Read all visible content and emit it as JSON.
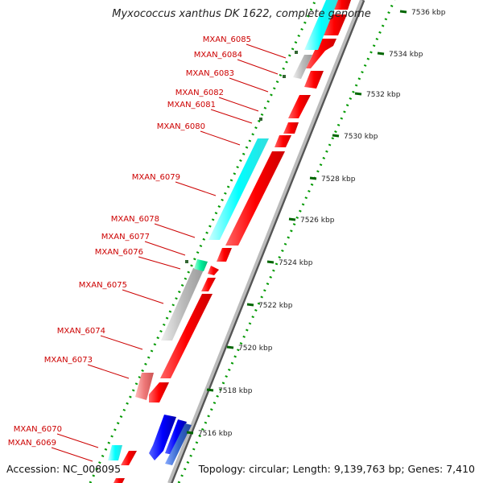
{
  "title": "Myxococcus xanthus DK 1622, complete genome",
  "accession_text": "Accession: NC_008095",
  "summary_text": "Topology: circular; Length: 9,139,763 bp; Genes: 7,410",
  "colors": {
    "forward_cds": "#ff0000",
    "cyan_feature": "#00ffff",
    "gray_feature": "#bbbbbb",
    "blue_feature": "#0000ff",
    "green_dots": "#009900",
    "label_red": "#cc0000"
  },
  "scale_labels": [
    "7536 kbp",
    "7534 kbp",
    "7532 kbp",
    "7530 kbp",
    "7528 kbp",
    "7526 kbp",
    "7524 kbp",
    "7522 kbp",
    "7520 kbp",
    "7518 kbp",
    "7516 kbp"
  ],
  "gene_labels": [
    "MXAN_6085",
    "MXAN_6084",
    "MXAN_6083",
    "MXAN_6082",
    "MXAN_6081",
    "MXAN_6080",
    "MXAN_6079",
    "MXAN_6078",
    "MXAN_6077",
    "MXAN_6076",
    "MXAN_6075",
    "MXAN_6074",
    "MXAN_6073",
    "MXAN_6070",
    "MXAN_6069"
  ]
}
